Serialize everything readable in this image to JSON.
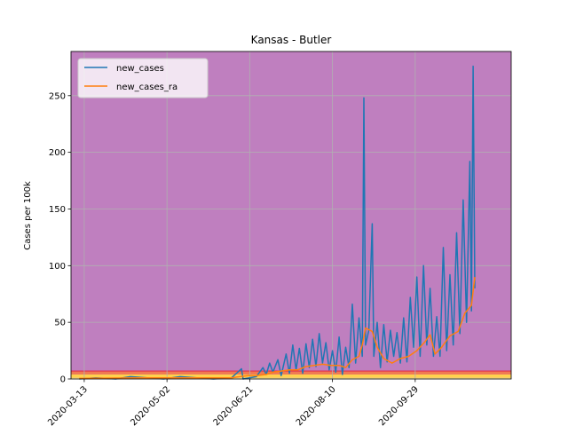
{
  "chart_data": {
    "type": "line",
    "title": "Kansas - Butler",
    "xlabel": "",
    "ylabel": "Cases per 100k",
    "xlim": [
      "2020-03-05",
      "2020-11-26"
    ],
    "ylim": [
      0,
      289
    ],
    "yticks": [
      0,
      50,
      100,
      150,
      200,
      250
    ],
    "xticks": [
      "2020-03-13",
      "2020-05-02",
      "2020-06-21",
      "2020-08-10",
      "2020-09-29"
    ],
    "grid": true,
    "legend_position": "top-left",
    "background_color": "#bf7fbf",
    "risk_bands": [
      {
        "from": 0,
        "to": 1,
        "color": "#fff3a0"
      },
      {
        "from": 1,
        "to": 4,
        "color": "#ffd24d"
      },
      {
        "from": 4,
        "to": 7,
        "color": "#f07a52"
      }
    ],
    "risk_line": {
      "y": 7,
      "color": "#e03050"
    },
    "series": [
      {
        "name": "new_cases",
        "color": "#1f77b4",
        "points": [
          [
            "2020-03-10",
            0
          ],
          [
            "2020-03-20",
            1
          ],
          [
            "2020-04-01",
            0
          ],
          [
            "2020-04-10",
            2
          ],
          [
            "2020-04-20",
            1
          ],
          [
            "2020-04-30",
            0
          ],
          [
            "2020-05-10",
            2
          ],
          [
            "2020-05-20",
            1
          ],
          [
            "2020-05-30",
            0
          ],
          [
            "2020-06-10",
            1
          ],
          [
            "2020-06-16",
            9
          ],
          [
            "2020-06-17",
            0
          ],
          [
            "2020-06-25",
            2
          ],
          [
            "2020-06-29",
            10
          ],
          [
            "2020-07-01",
            4
          ],
          [
            "2020-07-03",
            14
          ],
          [
            "2020-07-05",
            6
          ],
          [
            "2020-07-08",
            17
          ],
          [
            "2020-07-10",
            3
          ],
          [
            "2020-07-13",
            22
          ],
          [
            "2020-07-15",
            5
          ],
          [
            "2020-07-17",
            30
          ],
          [
            "2020-07-19",
            8
          ],
          [
            "2020-07-21",
            27
          ],
          [
            "2020-07-23",
            5
          ],
          [
            "2020-07-25",
            31
          ],
          [
            "2020-07-27",
            10
          ],
          [
            "2020-07-29",
            35
          ],
          [
            "2020-07-31",
            11
          ],
          [
            "2020-08-02",
            40
          ],
          [
            "2020-08-04",
            14
          ],
          [
            "2020-08-06",
            32
          ],
          [
            "2020-08-08",
            8
          ],
          [
            "2020-08-10",
            25
          ],
          [
            "2020-08-12",
            6
          ],
          [
            "2020-08-14",
            37
          ],
          [
            "2020-08-16",
            4
          ],
          [
            "2020-08-18",
            28
          ],
          [
            "2020-08-20",
            10
          ],
          [
            "2020-08-22",
            66
          ],
          [
            "2020-08-24",
            14
          ],
          [
            "2020-08-26",
            54
          ],
          [
            "2020-08-28",
            20
          ],
          [
            "2020-08-29",
            248
          ],
          [
            "2020-08-30",
            30
          ],
          [
            "2020-09-01",
            43
          ],
          [
            "2020-09-03",
            137
          ],
          [
            "2020-09-04",
            20
          ],
          [
            "2020-09-06",
            50
          ],
          [
            "2020-09-08",
            10
          ],
          [
            "2020-09-10",
            48
          ],
          [
            "2020-09-12",
            15
          ],
          [
            "2020-09-14",
            43
          ],
          [
            "2020-09-16",
            20
          ],
          [
            "2020-09-18",
            41
          ],
          [
            "2020-09-20",
            14
          ],
          [
            "2020-09-22",
            54
          ],
          [
            "2020-09-24",
            15
          ],
          [
            "2020-09-26",
            72
          ],
          [
            "2020-09-28",
            28
          ],
          [
            "2020-09-30",
            90
          ],
          [
            "2020-10-02",
            20
          ],
          [
            "2020-10-04",
            100
          ],
          [
            "2020-10-06",
            30
          ],
          [
            "2020-10-08",
            80
          ],
          [
            "2020-10-10",
            20
          ],
          [
            "2020-10-12",
            55
          ],
          [
            "2020-10-14",
            20
          ],
          [
            "2020-10-16",
            116
          ],
          [
            "2020-10-18",
            25
          ],
          [
            "2020-10-20",
            92
          ],
          [
            "2020-10-22",
            30
          ],
          [
            "2020-10-24",
            129
          ],
          [
            "2020-10-26",
            40
          ],
          [
            "2020-10-28",
            158
          ],
          [
            "2020-10-30",
            50
          ],
          [
            "2020-11-01",
            192
          ],
          [
            "2020-11-02",
            60
          ],
          [
            "2020-11-03",
            276
          ],
          [
            "2020-11-04",
            80
          ]
        ]
      },
      {
        "name": "new_cases_ra",
        "color": "#ff7f0e",
        "points": [
          [
            "2020-03-10",
            0.5
          ],
          [
            "2020-04-15",
            1
          ],
          [
            "2020-05-15",
            1
          ],
          [
            "2020-06-10",
            1
          ],
          [
            "2020-06-15",
            2
          ],
          [
            "2020-06-20",
            3
          ],
          [
            "2020-06-25",
            3
          ],
          [
            "2020-07-01",
            4
          ],
          [
            "2020-07-05",
            6
          ],
          [
            "2020-07-10",
            7
          ],
          [
            "2020-07-15",
            8
          ],
          [
            "2020-07-20",
            8
          ],
          [
            "2020-07-25",
            11
          ],
          [
            "2020-07-30",
            12
          ],
          [
            "2020-08-04",
            13
          ],
          [
            "2020-08-09",
            12
          ],
          [
            "2020-08-14",
            12
          ],
          [
            "2020-08-18",
            10
          ],
          [
            "2020-08-22",
            17
          ],
          [
            "2020-08-26",
            20
          ],
          [
            "2020-08-28",
            30
          ],
          [
            "2020-08-30",
            45
          ],
          [
            "2020-09-03",
            42
          ],
          [
            "2020-09-06",
            28
          ],
          [
            "2020-09-10",
            18
          ],
          [
            "2020-09-15",
            14
          ],
          [
            "2020-09-20",
            18
          ],
          [
            "2020-09-25",
            20
          ],
          [
            "2020-09-30",
            25
          ],
          [
            "2020-10-05",
            33
          ],
          [
            "2020-10-08",
            39
          ],
          [
            "2020-10-11",
            22
          ],
          [
            "2020-10-15",
            28
          ],
          [
            "2020-10-20",
            38
          ],
          [
            "2020-10-25",
            42
          ],
          [
            "2020-10-29",
            58
          ],
          [
            "2020-11-02",
            65
          ],
          [
            "2020-11-04",
            90
          ]
        ]
      }
    ]
  }
}
